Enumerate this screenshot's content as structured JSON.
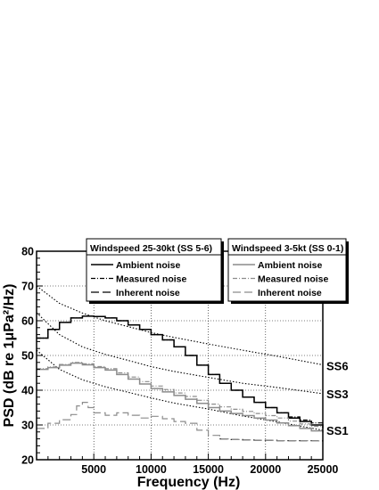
{
  "chart_data": {
    "type": "line",
    "xlabel": "Frequency (Hz)",
    "ylabel": "PSD (dB re 1μPa²/Hz)",
    "xlim": [
      0,
      25000
    ],
    "ylim": [
      20,
      80
    ],
    "xticks": [
      5000,
      10000,
      15000,
      20000,
      25000
    ],
    "xtick_labels": [
      "5000",
      "10000",
      "15000",
      "20000",
      "25000"
    ],
    "yticks": [
      20,
      30,
      40,
      50,
      60,
      70,
      80
    ],
    "grid": true,
    "legends": [
      {
        "title": "Windspeed 25-30kt (SS 5-6)",
        "entries": [
          "Ambient noise",
          "Measured noise",
          "Inherent noise"
        ],
        "color": "#000000",
        "placement": "top-center"
      },
      {
        "title": "Windspeed 3-5kt (SS 0-1)",
        "entries": [
          "Ambient noise",
          "Measured noise",
          "Inherent noise"
        ],
        "color": "#8c8c8c",
        "placement": "top-right"
      }
    ],
    "annotations": [
      {
        "text": "SS6",
        "y": 47
      },
      {
        "text": "SS3",
        "y": 39
      },
      {
        "text": "SS1",
        "y": 28.5
      }
    ],
    "reference_curves": [
      {
        "label": "SS6",
        "x": [
          0,
          2000,
          4000,
          6000,
          8000,
          10000,
          12000,
          15000,
          18000,
          21000,
          25000
        ],
        "y": [
          70,
          65,
          62.2,
          60,
          58.3,
          56.6,
          55.2,
          53.3,
          51.5,
          49.8,
          47.3
        ]
      },
      {
        "label": "SS3",
        "x": [
          0,
          2000,
          4000,
          6000,
          8000,
          10000,
          12000,
          15000,
          18000,
          21000,
          25000
        ],
        "y": [
          62.3,
          56,
          52.5,
          50.3,
          48.6,
          46.8,
          45.4,
          43.7,
          42,
          40.8,
          39
        ]
      },
      {
        "label": "SS1",
        "x": [
          0,
          2000,
          4000,
          6000,
          8000,
          10000,
          12000,
          15000,
          18000,
          21000,
          25000
        ],
        "y": [
          51.5,
          46,
          43,
          41,
          39.4,
          37.8,
          36.3,
          34.6,
          32.6,
          30.9,
          28.5
        ]
      }
    ],
    "series": [
      {
        "name": "Ambient noise",
        "group": "Windspeed 25-30kt (SS 5-6)",
        "style": "solid",
        "color": "#000000",
        "x": [
          0,
          1000,
          2000,
          3000,
          4000,
          5000,
          6000,
          7000,
          8000,
          9000,
          10000,
          11000,
          12000,
          13000,
          14000,
          15000,
          16000,
          17000,
          18000,
          19000,
          20000,
          21000,
          22000,
          23000,
          24000,
          25000
        ],
        "y": [
          55,
          57.5,
          59.5,
          60.8,
          61.3,
          61.2,
          60.8,
          60,
          58.8,
          57.5,
          56,
          54.5,
          52.5,
          50,
          47.2,
          44.5,
          42,
          40,
          38,
          36.5,
          35,
          33.5,
          32,
          31,
          30,
          29
        ]
      },
      {
        "name": "Measured noise",
        "group": "Windspeed 25-30kt (SS 5-6)",
        "style": "dash-dot",
        "color": "#000000",
        "x": [
          0,
          1000,
          2000,
          3000,
          4000,
          5000,
          6000,
          7000,
          8000,
          9000,
          10000,
          11000,
          12000,
          13000,
          14000,
          15000,
          16000,
          17000,
          18000,
          19000,
          20000,
          21000,
          22000,
          23000,
          24000,
          25000
        ],
        "y": [
          55,
          57.5,
          59.5,
          60.8,
          61.3,
          61.2,
          60.8,
          60,
          58.8,
          57.5,
          56,
          54.5,
          52.5,
          50,
          47.2,
          44.5,
          42,
          40,
          38,
          36.5,
          35,
          33.5,
          32.3,
          31.4,
          30.6,
          29.8
        ]
      },
      {
        "name": "Inherent noise",
        "group": "Windspeed 25-30kt (SS 5-6)",
        "style": "long-dash",
        "color": "#000000",
        "x": [
          16000,
          17000,
          18000,
          19000,
          20000,
          21000,
          22000,
          23000,
          24000,
          25000
        ],
        "y": [
          26,
          25.8,
          25.7,
          25.6,
          25.6,
          25.5,
          25.5,
          25.5,
          25.4,
          25.3
        ]
      },
      {
        "name": "Ambient noise",
        "group": "Windspeed 3-5kt (SS 0-1)",
        "style": "solid",
        "color": "#8c8c8c",
        "x": [
          0,
          1000,
          2000,
          3000,
          4000,
          5000,
          6000,
          7000,
          8000,
          9000,
          10000,
          11000,
          12000,
          13000,
          14000,
          15000,
          16000,
          17000,
          18000,
          19000,
          20000,
          21000,
          22000,
          23000,
          24000,
          25000
        ],
        "y": [
          46,
          46.5,
          47.2,
          47.8,
          47.3,
          46.5,
          45.8,
          44.5,
          43.2,
          41.8,
          40.5,
          39.5,
          38.5,
          37.4,
          36.2,
          35,
          34,
          33.3,
          32.7,
          32,
          31.4,
          30.6,
          29.8,
          29,
          28.3,
          27.8
        ]
      },
      {
        "name": "Measured noise",
        "group": "Windspeed 3-5kt (SS 0-1)",
        "style": "dash-dot",
        "color": "#8c8c8c",
        "x": [
          0,
          1000,
          2000,
          3000,
          4000,
          5000,
          6000,
          7000,
          8000,
          9000,
          10000,
          11000,
          12000,
          13000,
          14000,
          15000,
          16000,
          17000,
          18000,
          19000,
          20000,
          21000,
          22000,
          23000,
          24000,
          25000
        ],
        "y": [
          46.2,
          46.7,
          47.4,
          48,
          47.6,
          46.8,
          46.2,
          45,
          43.8,
          42.5,
          41.2,
          40.2,
          39.2,
          38.2,
          37.1,
          36,
          35.2,
          34.5,
          33.9,
          33.3,
          32.7,
          32,
          31.1,
          30.3,
          29.6,
          29
        ]
      },
      {
        "name": "Inherent noise",
        "group": "Windspeed 3-5kt (SS 0-1)",
        "style": "long-dash",
        "color": "#8c8c8c",
        "x": [
          0,
          1000,
          2000,
          3000,
          3500,
          4000,
          4500,
          5000,
          6000,
          7000,
          8000,
          9000,
          10000,
          11000,
          12000,
          13000,
          14000,
          15000,
          16000,
          17000,
          18000,
          19000,
          20000,
          21000,
          22000,
          23000,
          24000,
          25000
        ],
        "y": [
          29,
          30.5,
          31.5,
          33,
          35.5,
          36.5,
          35,
          33.5,
          32.8,
          33.5,
          32.8,
          32,
          32.5,
          31.8,
          31,
          30.5,
          28.5,
          27,
          26,
          25.8,
          25.7,
          25.6,
          25.6,
          25.5,
          25.5,
          25.5,
          25.4,
          25.3
        ]
      }
    ]
  }
}
